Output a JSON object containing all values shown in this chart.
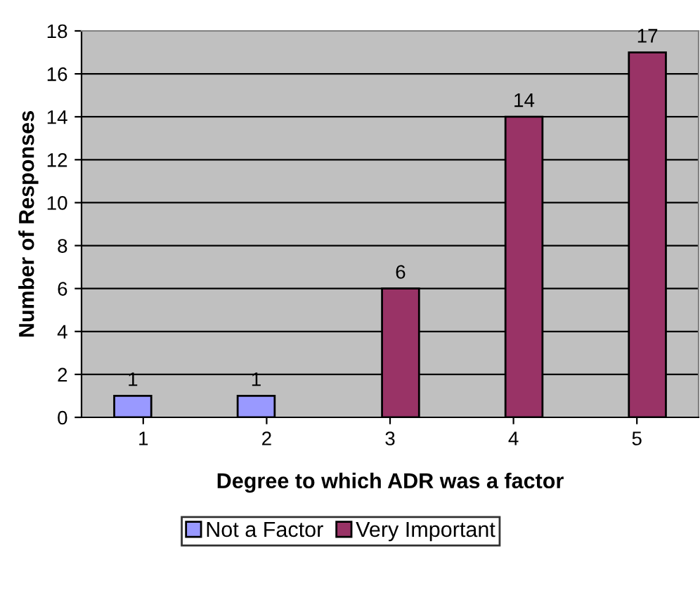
{
  "chart_data": {
    "type": "bar",
    "xlabel": "Degree to which ADR was a factor",
    "ylabel": "Number of Responses",
    "categories": [
      "1",
      "2",
      "3",
      "4",
      "5"
    ],
    "series": [
      {
        "name": "Not a Factor",
        "color": "#9999ff",
        "values": [
          1,
          1,
          null,
          null,
          null
        ]
      },
      {
        "name": "Very Important",
        "color": "#993366",
        "values": [
          null,
          null,
          6,
          14,
          17
        ]
      }
    ],
    "ylim": [
      0,
      18
    ],
    "yticks": [
      0,
      2,
      4,
      6,
      8,
      10,
      12,
      14,
      16,
      18
    ],
    "grid": "y",
    "legend": "bottom",
    "data_labels": true
  }
}
